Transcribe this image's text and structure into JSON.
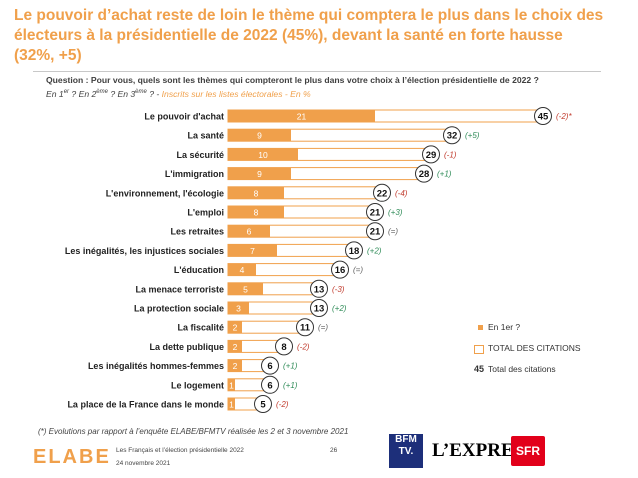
{
  "title": "Le pouvoir d’achat reste de loin le thème qui comptera le plus dans le choix des électeurs à la présidentielle de 2022 (45%), devant la santé en forte hausse (32%, +5)",
  "question_line1": "Question : Pour vous, quels sont les thèmes qui compteront le plus dans votre choix à l’élection présidentielle de 2022 ?",
  "question_line2_a": "En 1",
  "question_line2_sup1": "er",
  "question_line2_b": " ? En 2",
  "question_line2_sup2": "ème",
  "question_line2_c": " ? En 3",
  "question_line2_sup3": "ème",
  "question_line2_d": " ? - ",
  "question_line2_inscr": "Inscrits sur les listes électorales - En %",
  "legend": {
    "first_label": "En 1er ?",
    "total_label": "TOTAL DES CITATIONS",
    "example_value": "45",
    "example_label": "Total des citations"
  },
  "footnote": "(*) Evolutions par rapport à l’enquête ELABE/BFMTV réalisée les 2 et 3 novembre 2021",
  "footer": {
    "brand": "ELABE",
    "line1": "Les Français et l’élection présidentielle 2022",
    "line2": "24 novembre 2021",
    "page": "26",
    "bfm_top": "BFM",
    "bfm_bottom": "TV.",
    "lexpress": "L’EXPRESS",
    "sfr": "SFR"
  },
  "colors": {
    "accent": "#f0a04b",
    "fill": "#f0a04b",
    "total_border": "#f0a04b",
    "change": "#606060",
    "change_negative": "#c0392b",
    "change_positive": "#2e8b57"
  },
  "chart_data": {
    "type": "bar",
    "orientation": "horizontal",
    "xlim": [
      0,
      50
    ],
    "categories": [
      "Le pouvoir d'achat",
      "La santé",
      "La sécurité",
      "L'immigration",
      "L'environnement, l'écologie",
      "L'emploi",
      "Les retraites",
      "Les inégalités, les injustices sociales",
      "L'éducation",
      "La menace terroriste",
      "La protection sociale",
      "La fiscalité",
      "La dette publique",
      "Les inégalités hommes-femmes",
      "Le logement",
      "La place de la France dans le monde"
    ],
    "series": [
      {
        "name": "En 1er ?",
        "values": [
          21,
          9,
          10,
          9,
          8,
          8,
          6,
          7,
          4,
          5,
          3,
          2,
          2,
          2,
          1,
          1
        ]
      },
      {
        "name": "TOTAL DES CITATIONS",
        "values": [
          45,
          32,
          29,
          28,
          22,
          21,
          21,
          18,
          16,
          13,
          13,
          11,
          8,
          6,
          6,
          5
        ]
      }
    ],
    "changes": [
      "(-2)*",
      "(+5)",
      "(-1)",
      "(+1)",
      "(-4)",
      "(+3)",
      "(=)",
      "(+2)",
      "(=)",
      "(-3)",
      "(+2)",
      "(=)",
      "(-2)",
      "(+1)",
      "(+1)",
      "(-2)"
    ]
  }
}
